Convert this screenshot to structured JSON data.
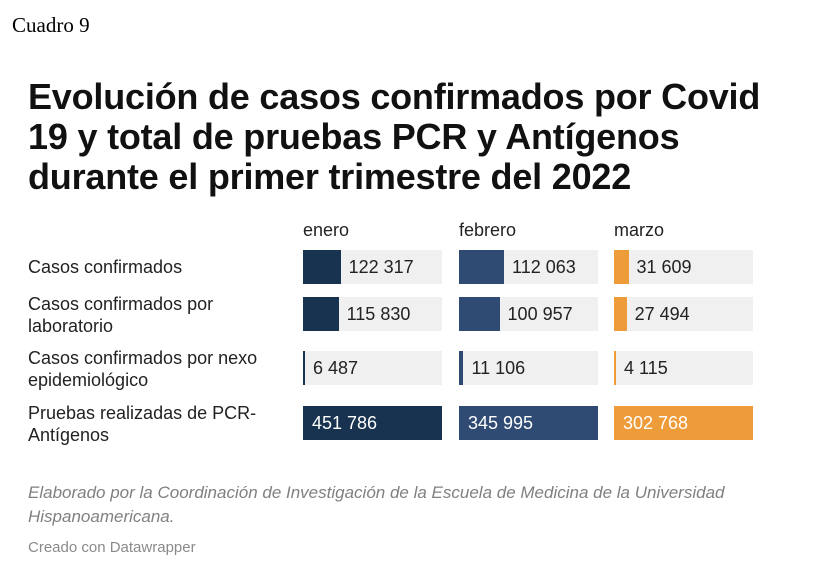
{
  "doc": {
    "label": "Cuadro 9"
  },
  "chart_data": {
    "type": "table",
    "title": "Evolución de casos confirmados por Covid 19 y total de pruebas PCR y Antígenos durante el primer trimestre del 2022",
    "columns": [
      "enero",
      "febrero",
      "marzo"
    ],
    "rows": [
      {
        "label": "Casos confirmados",
        "values": [
          122317,
          112063,
          31609
        ],
        "display": [
          "122 317",
          "112 063",
          "31 609"
        ]
      },
      {
        "label": "Casos confirmados por laboratorio",
        "values": [
          115830,
          100957,
          27494
        ],
        "display": [
          "115 830",
          "100 957",
          "27 494"
        ]
      },
      {
        "label": "Casos confirmados por nexo epidemiológico",
        "values": [
          6487,
          11106,
          4115
        ],
        "display": [
          "6 487",
          "11 106",
          "4 115"
        ]
      },
      {
        "label": "Pruebas realizadas de PCR-Antígenos",
        "values": [
          451786,
          345995,
          302768
        ],
        "display": [
          "451 786",
          "345 995",
          "302 768"
        ]
      }
    ],
    "colors": [
      "#17334f",
      "#2f4b73",
      "#ee9b3a"
    ],
    "notes": "Elaborado por la Coordinación de Investigación de la Escuela de Medicina de la Universidad Hispanoamericana.",
    "credit": "Creado con Datawrapper"
  }
}
